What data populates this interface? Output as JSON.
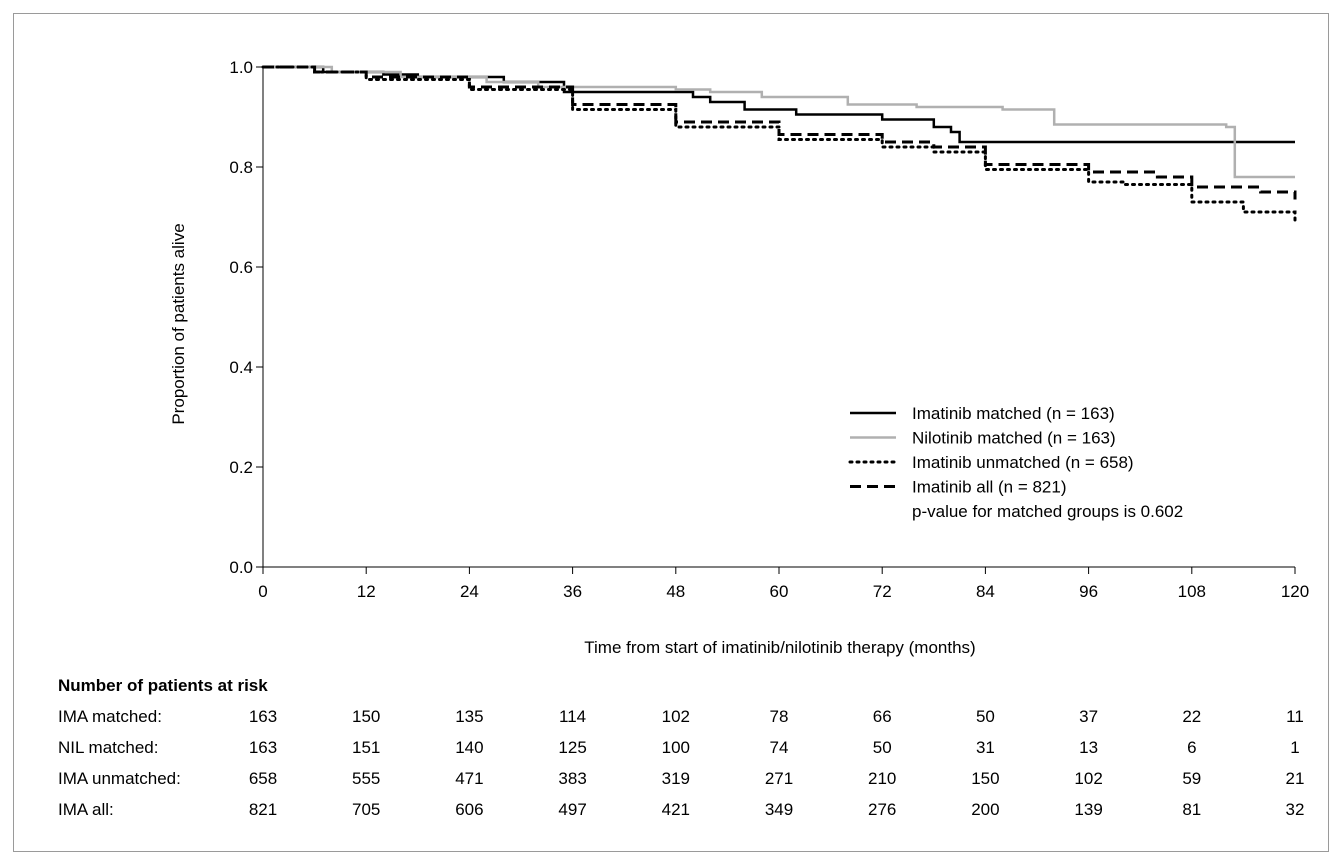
{
  "chart_data": {
    "type": "line",
    "subtype": "kaplan-meier step curve",
    "title": "",
    "xlabel": "Time from start of imatinib/nilotinib therapy (months)",
    "ylabel": "Proportion of patients alive",
    "xlim": [
      0,
      120
    ],
    "ylim": [
      0.0,
      1.0
    ],
    "xticks": [
      "0",
      "12",
      "24",
      "36",
      "48",
      "60",
      "72",
      "84",
      "96",
      "108",
      "120"
    ],
    "yticks": [
      "0.0",
      "0.2",
      "0.4",
      "0.6",
      "0.8",
      "1.0"
    ],
    "grid": false,
    "legend_position": "bottom-right",
    "series": [
      {
        "name": "Imatinib matched (n = 163)",
        "color": "#000000",
        "style": "solid",
        "points": [
          [
            0,
            1.0
          ],
          [
            7,
            0.99
          ],
          [
            14,
            0.985
          ],
          [
            18,
            0.98
          ],
          [
            28,
            0.97
          ],
          [
            35,
            0.95
          ],
          [
            50,
            0.94
          ],
          [
            52,
            0.93
          ],
          [
            56,
            0.915
          ],
          [
            62,
            0.905
          ],
          [
            72,
            0.895
          ],
          [
            78,
            0.88
          ],
          [
            80,
            0.87
          ],
          [
            81,
            0.85
          ],
          [
            120,
            0.85
          ]
        ]
      },
      {
        "name": "Nilotinib matched (n = 163)",
        "color": "#b0b0b0",
        "style": "solid",
        "points": [
          [
            0,
            1.0
          ],
          [
            8,
            0.99
          ],
          [
            16,
            0.98
          ],
          [
            26,
            0.97
          ],
          [
            32,
            0.96
          ],
          [
            48,
            0.955
          ],
          [
            52,
            0.95
          ],
          [
            58,
            0.94
          ],
          [
            68,
            0.925
          ],
          [
            76,
            0.92
          ],
          [
            86,
            0.915
          ],
          [
            92,
            0.885
          ],
          [
            112,
            0.88
          ],
          [
            113,
            0.78
          ],
          [
            120,
            0.78
          ]
        ]
      },
      {
        "name": "Imatinib unmatched (n = 658)",
        "color": "#000000",
        "style": "dotted",
        "points": [
          [
            0,
            1.0
          ],
          [
            6,
            0.99
          ],
          [
            12,
            0.975
          ],
          [
            24,
            0.955
          ],
          [
            36,
            0.915
          ],
          [
            48,
            0.88
          ],
          [
            60,
            0.855
          ],
          [
            72,
            0.84
          ],
          [
            78,
            0.83
          ],
          [
            84,
            0.795
          ],
          [
            96,
            0.77
          ],
          [
            100,
            0.765
          ],
          [
            108,
            0.73
          ],
          [
            114,
            0.71
          ],
          [
            120,
            0.69
          ]
        ]
      },
      {
        "name": "Imatinib all (n = 821)",
        "color": "#000000",
        "style": "dashed",
        "points": [
          [
            0,
            1.0
          ],
          [
            6,
            0.99
          ],
          [
            12,
            0.98
          ],
          [
            24,
            0.96
          ],
          [
            36,
            0.925
          ],
          [
            48,
            0.89
          ],
          [
            60,
            0.865
          ],
          [
            72,
            0.85
          ],
          [
            78,
            0.84
          ],
          [
            84,
            0.805
          ],
          [
            96,
            0.79
          ],
          [
            104,
            0.78
          ],
          [
            108,
            0.76
          ],
          [
            116,
            0.75
          ],
          [
            120,
            0.735
          ]
        ]
      }
    ],
    "annotation": "p-value for matched groups is 0.602"
  },
  "risk_table": {
    "title": "Number of patients at risk",
    "rows": [
      {
        "label": "IMA matched:",
        "values": [
          "163",
          "150",
          "135",
          "114",
          "102",
          "78",
          "66",
          "50",
          "37",
          "22",
          "11"
        ]
      },
      {
        "label": "NIL matched:",
        "values": [
          "163",
          "151",
          "140",
          "125",
          "100",
          "74",
          "50",
          "31",
          "13",
          "6",
          "1"
        ]
      },
      {
        "label": "IMA unmatched:",
        "values": [
          "658",
          "555",
          "471",
          "383",
          "319",
          "271",
          "210",
          "150",
          "102",
          "59",
          "21"
        ]
      },
      {
        "label": "IMA all:",
        "values": [
          "821",
          "705",
          "606",
          "497",
          "421",
          "349",
          "276",
          "200",
          "139",
          "81",
          "32"
        ]
      }
    ]
  }
}
